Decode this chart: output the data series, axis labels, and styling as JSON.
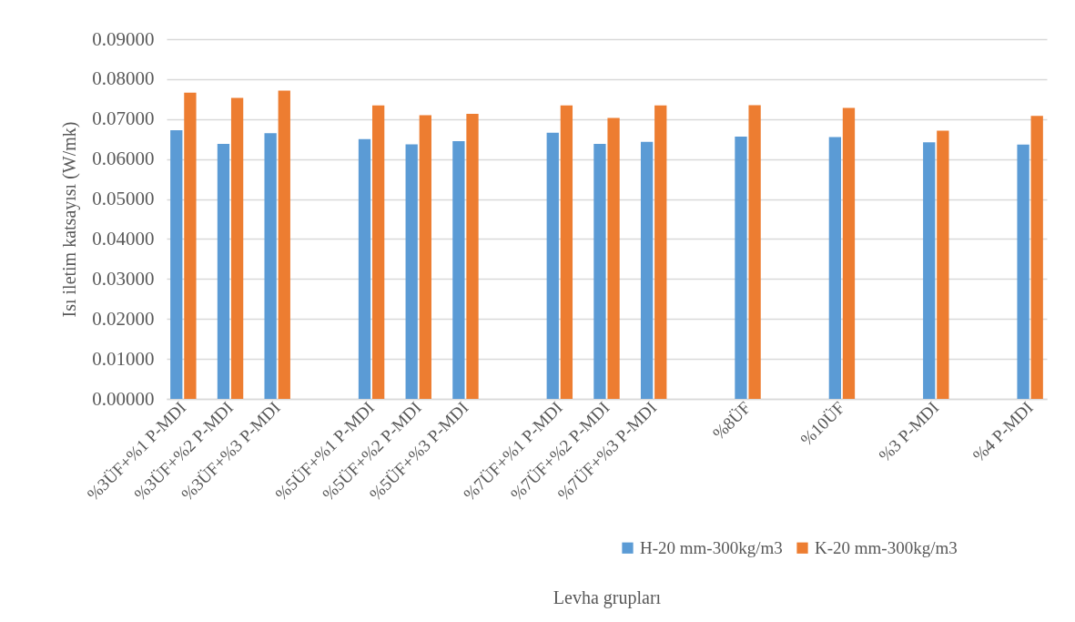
{
  "chart_data": {
    "type": "bar",
    "xlabel": "Levha grupları",
    "ylabel": "Isı iletim katsayısı  (W/mk)",
    "categories": [
      "%3ÜF+%1 P-MDI",
      "%3ÜF+%2 P-MDI",
      "%3ÜF+%3 P-MDI",
      null,
      "%5ÜF+%1 P-MDI",
      "%5ÜF+%2 P-MDI",
      "%5ÜF+%3 P-MDI",
      null,
      "%7ÜF+%1 P-MDI",
      "%7ÜF+%2 P-MDI",
      "%7ÜF+%3 P-MDI",
      null,
      "%8ÜF",
      null,
      "%10ÜF",
      null,
      "%3 P-MDI",
      null,
      "%4 P-MDI"
    ],
    "series": [
      {
        "name": "H-20 mm-300kg/m3",
        "color": "#5b9bd5",
        "values": [
          0.0672,
          0.0638,
          0.0665,
          null,
          0.065,
          0.0637,
          0.0645,
          null,
          0.0666,
          0.0638,
          0.0643,
          null,
          0.0656,
          null,
          0.0655,
          null,
          0.0642,
          null,
          0.0636
        ]
      },
      {
        "name": "K-20 mm-300kg/m3",
        "color": "#ed7d31",
        "values": [
          0.0766,
          0.0753,
          0.0771,
          null,
          0.0734,
          0.071,
          0.0713,
          null,
          0.0734,
          0.0703,
          0.0734,
          null,
          0.0735,
          null,
          0.0728,
          null,
          0.0671,
          null,
          0.0708
        ]
      }
    ],
    "ylim": [
      0,
      0.09
    ],
    "yticks": [
      {
        "value": 0,
        "label": "0.00000"
      },
      {
        "value": 0.01,
        "label": "0.01000"
      },
      {
        "value": 0.02,
        "label": "0.02000"
      },
      {
        "value": 0.03,
        "label": "0.03000"
      },
      {
        "value": 0.04,
        "label": "0.04000"
      },
      {
        "value": 0.05,
        "label": "0.05000"
      },
      {
        "value": 0.06,
        "label": "0.06000"
      },
      {
        "value": 0.07,
        "label": "0.07000"
      },
      {
        "value": 0.08,
        "label": "0.08000"
      },
      {
        "value": 0.09,
        "label": "0.09000"
      }
    ],
    "grid": "y",
    "legend": "bottom right"
  }
}
